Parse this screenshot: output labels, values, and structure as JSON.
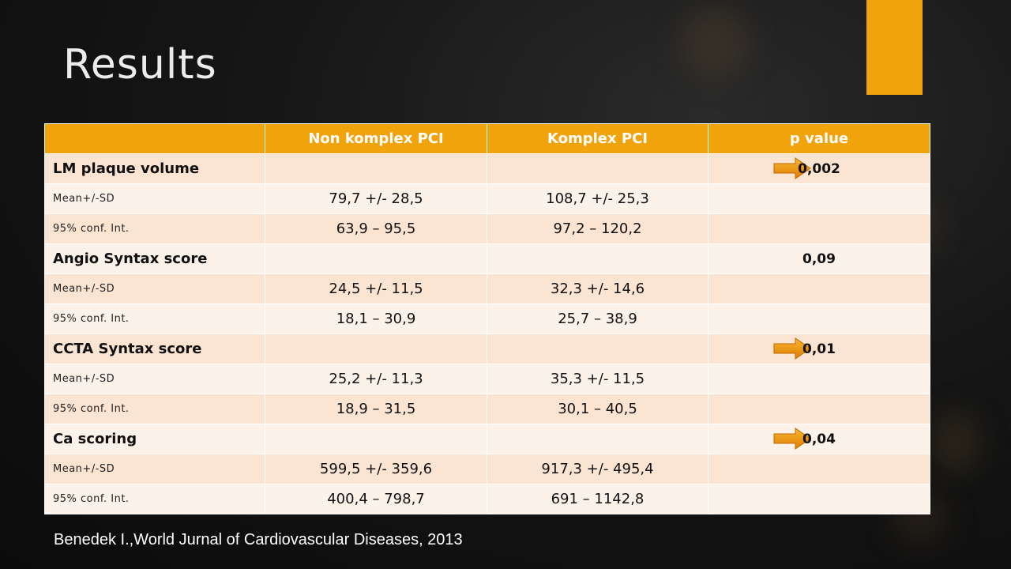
{
  "slide": {
    "title": "Results",
    "citation": "Benedek I.,World Jurnal of Cardiovascular Diseases, 2013",
    "accent_color": "#f0a30a"
  },
  "table": {
    "headers": [
      "",
      "Non komplex PCI",
      "Komplex PCI",
      "p value"
    ],
    "rows": [
      {
        "kind": "group",
        "label": "LM plaque volume",
        "non_komplex": "",
        "komplex": "",
        "p_value": "0,002",
        "arrow": true
      },
      {
        "kind": "sub",
        "label": "Mean+/-SD",
        "non_komplex": "79,7 +/- 28,5",
        "komplex": "108,7 +/- 25,3",
        "p_value": ""
      },
      {
        "kind": "sub",
        "label": "95% conf. Int.",
        "non_komplex": "63,9 – 95,5",
        "komplex": "97,2 – 120,2",
        "p_value": ""
      },
      {
        "kind": "group",
        "label": "Angio Syntax score",
        "non_komplex": "",
        "komplex": "",
        "p_value": "0,09",
        "arrow": false
      },
      {
        "kind": "sub",
        "label": "Mean+/-SD",
        "non_komplex": "24,5 +/- 11,5",
        "komplex": "32,3 +/- 14,6",
        "p_value": ""
      },
      {
        "kind": "sub",
        "label": "95% conf. Int.",
        "non_komplex": "18,1 – 30,9",
        "komplex": "25,7 – 38,9",
        "p_value": ""
      },
      {
        "kind": "group",
        "label": "CCTA Syntax score",
        "non_komplex": "",
        "komplex": "",
        "p_value": "0,01",
        "arrow": true
      },
      {
        "kind": "sub",
        "label": "Mean+/-SD",
        "non_komplex": "25,2 +/- 11,3",
        "komplex": "35,3 +/- 11,5",
        "p_value": ""
      },
      {
        "kind": "sub",
        "label": "95% conf. Int.",
        "non_komplex": "18,9 – 31,5",
        "komplex": "30,1 – 40,5",
        "p_value": ""
      },
      {
        "kind": "group",
        "label": "Ca scoring",
        "non_komplex": "",
        "komplex": "",
        "p_value": "0,04",
        "arrow": true
      },
      {
        "kind": "sub",
        "label": "Mean+/-SD",
        "non_komplex": "599,5 +/- 359,6",
        "komplex": "917,3 +/- 495,4",
        "p_value": ""
      },
      {
        "kind": "sub",
        "label": "95% conf. Int.",
        "non_komplex": "400,4 – 798,7",
        "komplex": "691 – 1142,8",
        "p_value": ""
      }
    ]
  },
  "icons": {
    "significance_marker": "right-arrow-icon"
  }
}
